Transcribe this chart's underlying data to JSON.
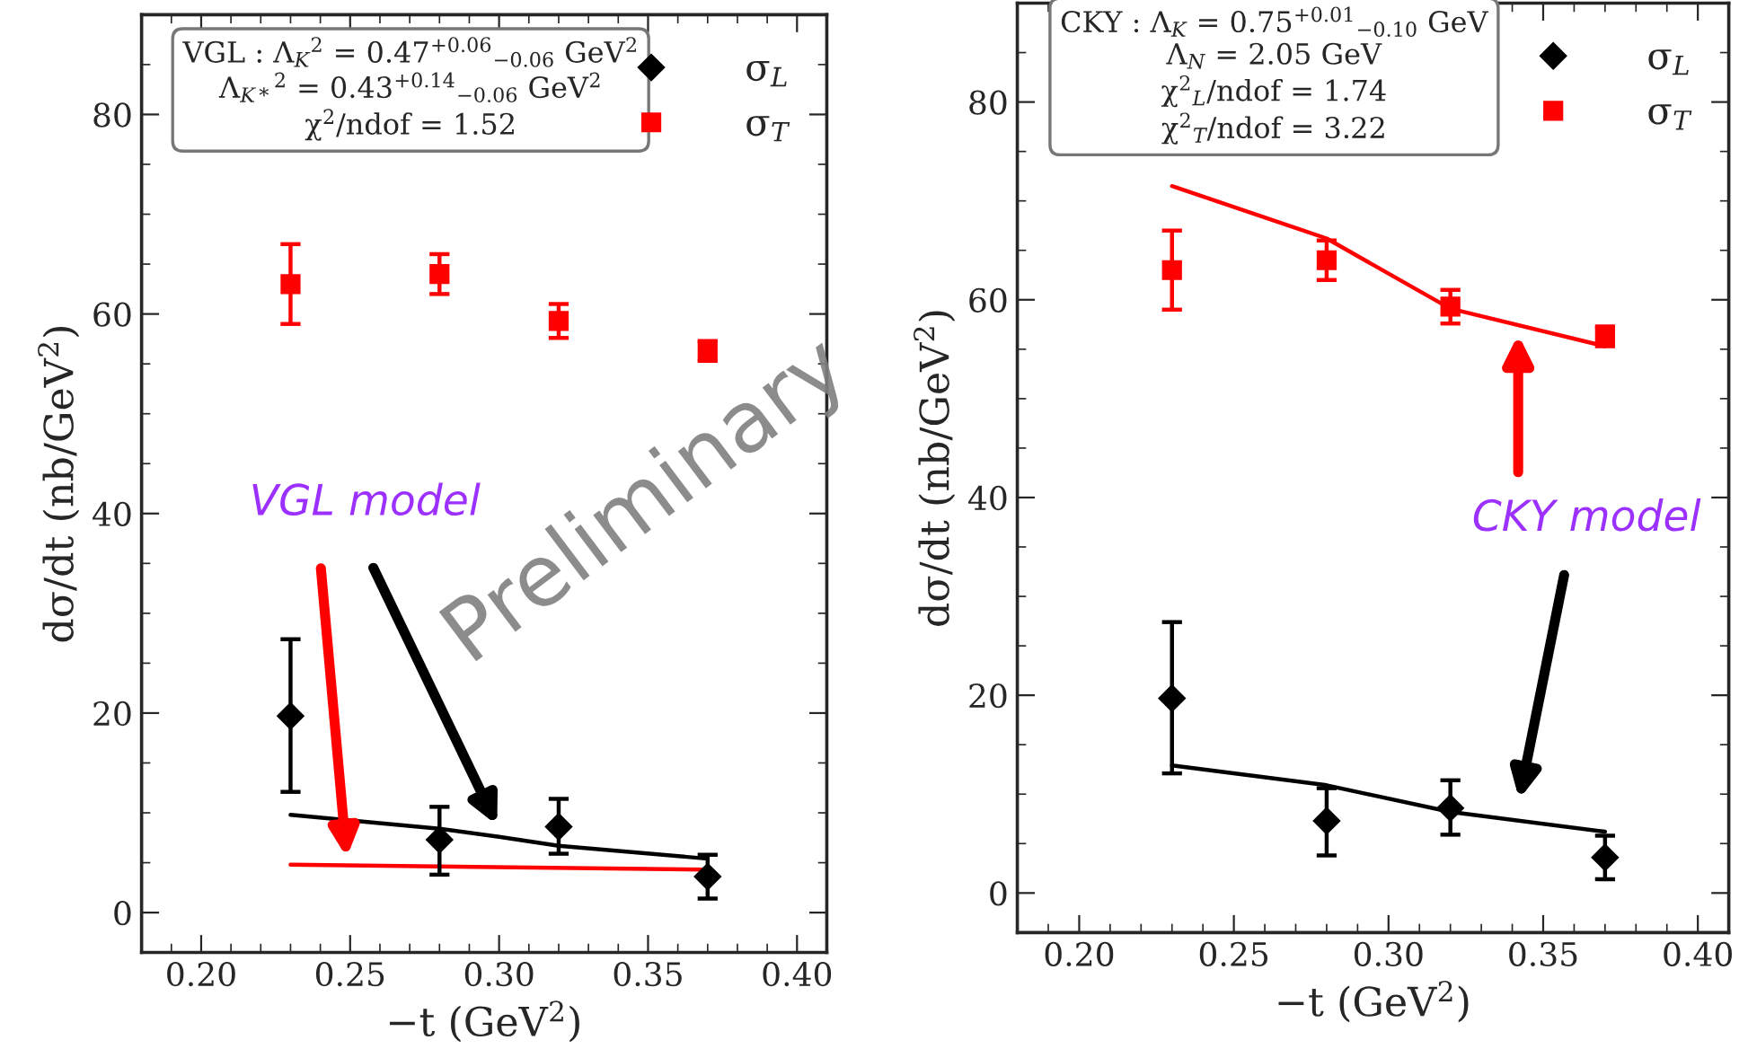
{
  "chart_data": [
    {
      "type": "scatter",
      "xlabel": "−t (GeV$^{2}$)",
      "ylabel": "dσ/dt (nb/GeV$^{2}$)",
      "xlim": [
        0.18,
        0.41
      ],
      "xticks": [
        {
          "value": 0.2,
          "label": "0.20"
        },
        {
          "value": 0.25,
          "label": "0.25"
        },
        {
          "value": 0.3,
          "label": "0.30"
        },
        {
          "value": 0.35,
          "label": "0.35"
        },
        {
          "value": 0.4,
          "label": "0.40"
        }
      ],
      "ylim": [
        -4,
        90
      ],
      "yticks": [
        0,
        20,
        40,
        60,
        80
      ],
      "legend": "top right",
      "grid": false,
      "series": [
        {
          "name": "σ$_{L}$",
          "marker": "diamond",
          "color": "#000000",
          "x": [
            0.23,
            0.28,
            0.32,
            0.37
          ],
          "values": [
            19.7,
            7.3,
            8.6,
            3.6
          ],
          "errors": [
            [
              12.1,
              27.4
            ],
            [
              3.8,
              10.6
            ],
            [
              5.9,
              11.4
            ],
            [
              1.4,
              5.8
            ]
          ]
        },
        {
          "name": "σ$_{T}$",
          "marker": "square",
          "color": "#ff0000",
          "x": [
            0.23,
            0.28,
            0.32,
            0.37
          ],
          "values": [
            63,
            64,
            59.3,
            56.3
          ],
          "errors": [
            [
              59,
              67
            ],
            [
              62,
              66
            ],
            [
              57.6,
              61
            ],
            [
              55.3,
              57.3
            ]
          ]
        },
        {
          "type": "line",
          "color": "#000000",
          "x": [
            0.23,
            0.28,
            0.3,
            0.32,
            0.37
          ],
          "values": [
            9.8,
            8.4,
            7.6,
            6.7,
            5.4
          ]
        },
        {
          "type": "line",
          "color": "#ff0000",
          "x": [
            0.23,
            0.37
          ],
          "values": [
            4.8,
            4.3
          ]
        }
      ],
      "annotations": [
        "VGL : Λ$_{K}$$^{2}$ = 0.47$^{+0.06}$$_{−0.06}$ GeV$^{2}$\nΛ$_{K*}$$^{2}$ = 0.43$^{+0.14}$$_{−0.06}$ GeV$^{2}$\nχ$^{2}$/ndof = 1.52",
        "VGL model",
        "Preliminary"
      ]
    },
    {
      "type": "scatter",
      "xlabel": "−t (GeV$^{2}$)",
      "ylabel": "dσ/dt (nb/GeV$^{2}$)",
      "xlim": [
        0.18,
        0.41
      ],
      "xticks": [
        {
          "value": 0.2,
          "label": "0.20"
        },
        {
          "value": 0.25,
          "label": "0.25"
        },
        {
          "value": 0.3,
          "label": "0.30"
        },
        {
          "value": 0.35,
          "label": "0.35"
        },
        {
          "value": 0.4,
          "label": "0.40"
        }
      ],
      "ylim": [
        -4,
        90
      ],
      "yticks": [
        0,
        20,
        40,
        60,
        80
      ],
      "legend": "top right",
      "grid": false,
      "series": [
        {
          "name": "σ$_{L}$",
          "marker": "diamond",
          "color": "#000000",
          "x": [
            0.23,
            0.28,
            0.32,
            0.37
          ],
          "values": [
            19.7,
            7.3,
            8.6,
            3.6
          ],
          "errors": [
            [
              12.1,
              27.4
            ],
            [
              3.8,
              10.6
            ],
            [
              5.9,
              11.4
            ],
            [
              1.4,
              5.8
            ]
          ]
        },
        {
          "name": "σ$_{T}$",
          "marker": "square",
          "color": "#ff0000",
          "x": [
            0.23,
            0.28,
            0.32,
            0.37
          ],
          "values": [
            63,
            64,
            59.3,
            56.3
          ],
          "errors": [
            [
              59,
              67
            ],
            [
              62,
              66
            ],
            [
              57.6,
              61
            ],
            [
              55.3,
              57.3
            ]
          ]
        },
        {
          "type": "line",
          "color": "#000000",
          "x": [
            0.23,
            0.28,
            0.32,
            0.37
          ],
          "values": [
            12.9,
            10.9,
            8.2,
            6.2
          ]
        },
        {
          "type": "line",
          "color": "#ff0000",
          "x": [
            0.23,
            0.28,
            0.32,
            0.37
          ],
          "values": [
            71.5,
            66.2,
            59.1,
            55.3
          ]
        }
      ],
      "annotations": [
        "CKY : Λ$_{K}$ = 0.75$^{+0.01}$$_{−0.10}$ GeV\nΛ$_{N}$ = 2.05 GeV\nχ$^{2}$$_{L}$/ndof = 1.74\nχ$^{2}$$_{T}$/ndof = 3.22",
        "CKY model"
      ]
    }
  ]
}
